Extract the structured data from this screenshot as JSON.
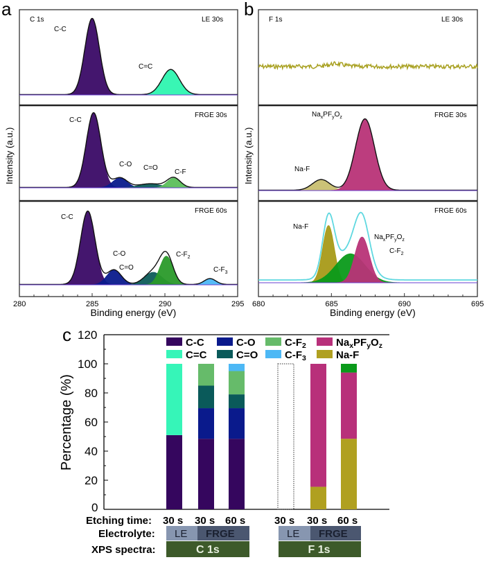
{
  "panel_labels": {
    "a": "a",
    "b": "b",
    "c": "c"
  },
  "chart_data": [
    {
      "type": "area",
      "panel": "a",
      "element": "C 1s",
      "xlabel": "Binding energy (eV)",
      "ylabel": "Intensity (a.u.)",
      "xlim": [
        280,
        295
      ],
      "xticks": [
        "280",
        "285",
        "290",
        "295"
      ],
      "subplots": [
        {
          "title": "LE 30s",
          "peaks": [
            {
              "name": "C-C",
              "center": 285.0,
              "amp": 1.0,
              "sigma": 0.5,
              "color": "#3a0a66"
            },
            {
              "name": "C=C",
              "center": 290.4,
              "amp": 0.33,
              "sigma": 0.6,
              "color": "#2ef5b0"
            }
          ]
        },
        {
          "title": "FRGE 30s",
          "peaks": [
            {
              "name": "C-C",
              "center": 285.1,
              "amp": 1.0,
              "sigma": 0.5,
              "color": "#3a0a66"
            },
            {
              "name": "C-O",
              "center": 286.9,
              "amp": 0.13,
              "sigma": 0.5,
              "color": "#0a1a8c"
            },
            {
              "name": "C=O",
              "center": 289.0,
              "amp": 0.05,
              "sigma": 0.8,
              "color": "#0d5c5a"
            },
            {
              "name": "C-F",
              "center": 290.6,
              "amp": 0.13,
              "sigma": 0.45,
              "color": "#5cbf5c"
            }
          ]
        },
        {
          "title": "FRGE 60s",
          "peaks": [
            {
              "name": "C-C",
              "center": 284.7,
              "amp": 1.0,
              "sigma": 0.5,
              "color": "#3a0a66"
            },
            {
              "name": "C-O",
              "center": 286.5,
              "amp": 0.2,
              "sigma": 0.5,
              "color": "#0a1a8c"
            },
            {
              "name": "C=O",
              "center": 289.2,
              "amp": 0.17,
              "sigma": 0.6,
              "color": "#0d5c5a"
            },
            {
              "name": "C-F2",
              "center": 290.1,
              "amp": 0.39,
              "sigma": 0.45,
              "color": "#2a9a2a"
            },
            {
              "name": "C-F3",
              "center": 293.1,
              "amp": 0.08,
              "sigma": 0.4,
              "color": "#4db8f5"
            }
          ]
        }
      ]
    },
    {
      "type": "area",
      "panel": "b",
      "element": "F 1s",
      "xlabel": "Binding energy (eV)",
      "ylabel": "Intensity (a.u.)",
      "xlim": [
        680,
        695
      ],
      "xticks": [
        "680",
        "685",
        "690",
        "695"
      ],
      "subplots": [
        {
          "title": "LE 30s",
          "peaks": [],
          "noise_color": "#a8a020"
        },
        {
          "title": "FRGE 30s",
          "peaks": [
            {
              "name": "Na-F",
              "center": 684.3,
              "amp": 0.15,
              "sigma": 0.6,
              "color": "#c8bf70"
            },
            {
              "name": "NaxPFyOz",
              "center": 687.3,
              "amp": 1.0,
              "sigma": 0.65,
              "color": "#b83377"
            }
          ]
        },
        {
          "title": "FRGE 60s",
          "envelope_color": "#5fd8e0",
          "peaks": [
            {
              "name": "Na-F",
              "center": 684.8,
              "amp": 0.75,
              "sigma": 0.4,
              "color": "#a89a18"
            },
            {
              "name": "C-F2",
              "center": 686.3,
              "amp": 0.38,
              "sigma": 1.0,
              "color": "#0a9a1a"
            },
            {
              "name": "NaxPFyOz",
              "center": 687.1,
              "amp": 0.6,
              "sigma": 0.5,
              "color": "#b83377"
            }
          ]
        }
      ]
    },
    {
      "type": "bar",
      "panel": "c",
      "stacked": true,
      "ylabel": "Percentage (%)",
      "ylim": [
        0,
        120
      ],
      "yticks": [
        "0",
        "20",
        "40",
        "60",
        "80",
        "100",
        "120"
      ],
      "row_labels": {
        "etching": "Etching time:",
        "electrolyte": "Electrolyte:",
        "xps": "XPS spectra:"
      },
      "categories": [
        "30 s",
        "30 s",
        "60 s",
        "30 s",
        "30 s",
        "60 s"
      ],
      "electrolyte_groups": [
        [
          "LE",
          "FRGE"
        ],
        [
          "LE",
          "FRGE"
        ]
      ],
      "xps_groups": [
        "C 1s",
        "F 1s"
      ],
      "legend": [
        {
          "name": "C-C",
          "color": "#35065e"
        },
        {
          "name": "C-O",
          "color": "#0a1a8c"
        },
        {
          "name": "C-F2",
          "color": "#66bb6a"
        },
        {
          "name": "NaxPFyOz",
          "color": "#b8307a"
        },
        {
          "name": "C=C",
          "color": "#36f5b8"
        },
        {
          "name": "C=O",
          "color": "#0a5a5a"
        },
        {
          "name": "C-F3",
          "color": "#4db8f5"
        },
        {
          "name": "Na-F",
          "color": "#b0a020"
        }
      ],
      "bars": [
        {
          "segments": [
            {
              "name": "C-C",
              "value": 51
            },
            {
              "name": "C=C",
              "value": 49
            }
          ]
        },
        {
          "segments": [
            {
              "name": "C-C",
              "value": 48.5
            },
            {
              "name": "C-O",
              "value": 21
            },
            {
              "name": "C=O",
              "value": 15.5
            },
            {
              "name": "C-F2",
              "value": 15
            }
          ]
        },
        {
          "segments": [
            {
              "name": "C-C",
              "value": 48.5
            },
            {
              "name": "C-O",
              "value": 21
            },
            {
              "name": "C=O",
              "value": 9.5
            },
            {
              "name": "C-F2",
              "value": 16
            },
            {
              "name": "C-F3",
              "value": 5
            }
          ]
        },
        {
          "segments": [],
          "empty": true
        },
        {
          "segments": [
            {
              "name": "Na-F",
              "value": 15.5
            },
            {
              "name": "NaxPFyOz",
              "value": 84.5
            }
          ]
        },
        {
          "segments": [
            {
              "name": "Na-F",
              "value": 48.5
            },
            {
              "name": "NaxPFyOz",
              "value": 45.5
            },
            {
              "name": "C-F2",
              "value": 6,
              "color": "#0a9a1a"
            }
          ]
        }
      ]
    }
  ]
}
